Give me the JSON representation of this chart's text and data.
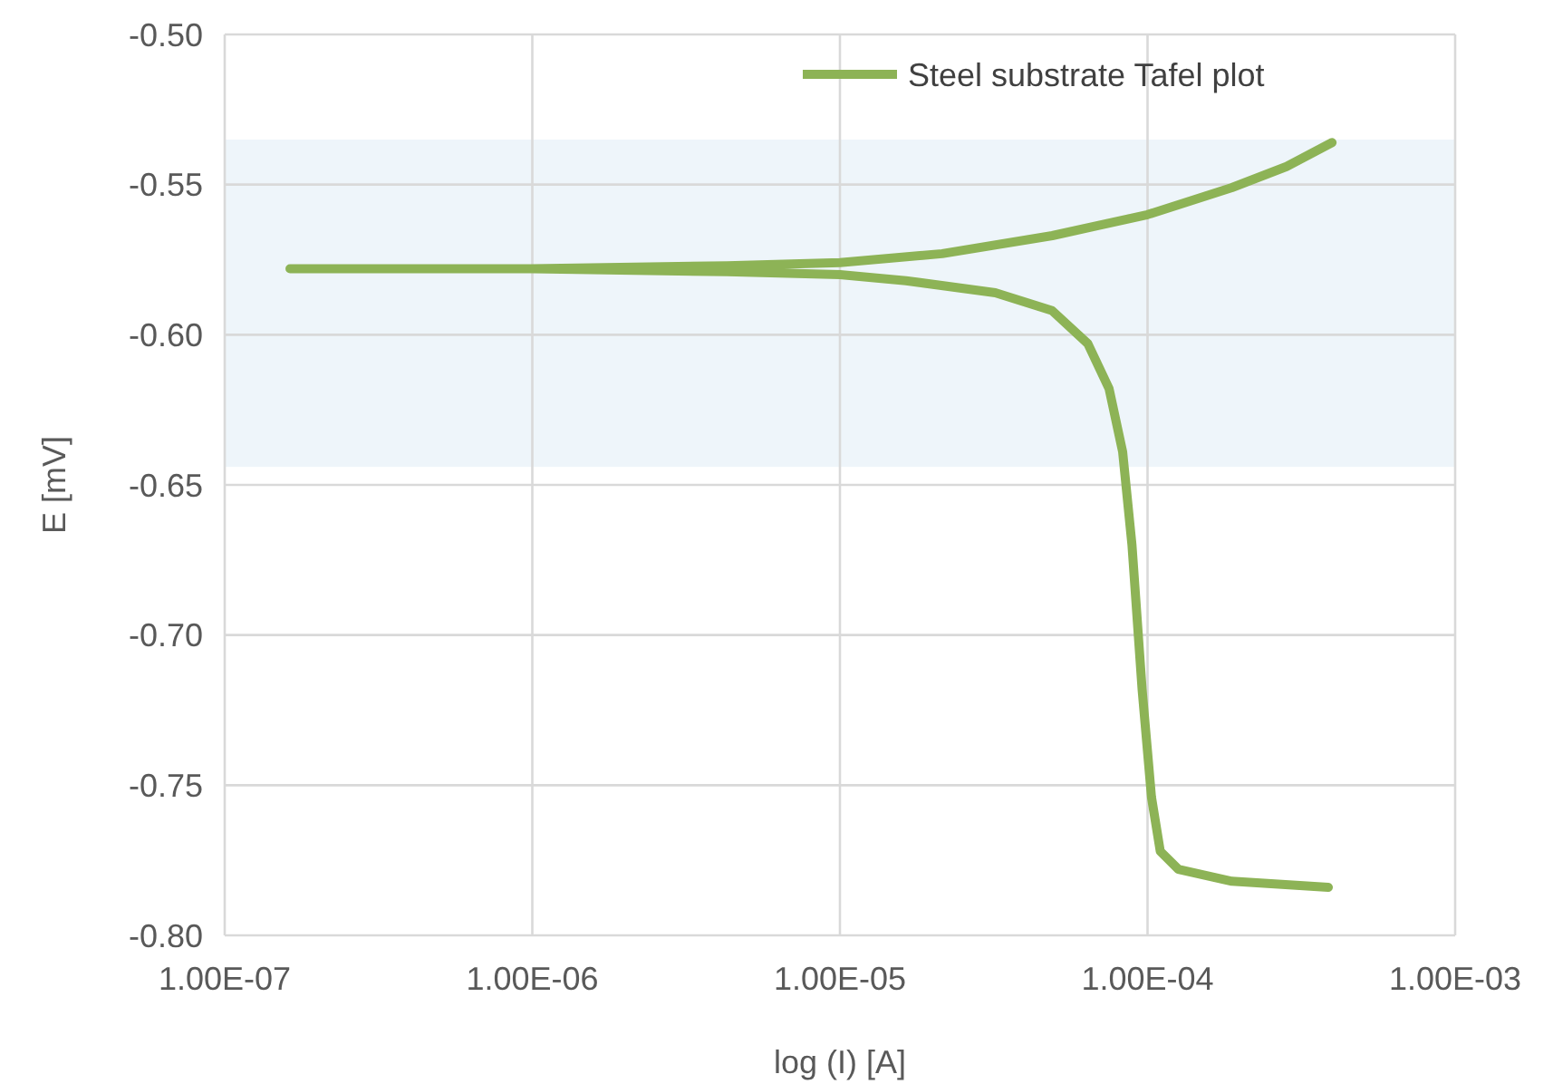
{
  "chart_data": {
    "type": "line",
    "xlabel": "log (I) [A]",
    "ylabel": "E [mV]",
    "log": "x",
    "grid": true,
    "legend": "top right",
    "line_style": "solid",
    "xlim": [
      1e-07,
      0.001
    ],
    "xticks": [
      {
        "value": 1e-07,
        "label": "1.00E-07"
      },
      {
        "value": 1e-06,
        "label": "1.00E-06"
      },
      {
        "value": 1e-05,
        "label": "1.00E-05"
      },
      {
        "value": 0.0001,
        "label": "1.00E-04"
      },
      {
        "value": 0.001,
        "label": "1.00E-03"
      }
    ],
    "ylim": [
      -0.8,
      -0.5
    ],
    "yticks": [
      {
        "value": -0.8,
        "label": "-0.80"
      },
      {
        "value": -0.75,
        "label": "-0.75"
      },
      {
        "value": -0.7,
        "label": "-0.70"
      },
      {
        "value": -0.65,
        "label": "-0.65"
      },
      {
        "value": -0.6,
        "label": "-0.60"
      },
      {
        "value": -0.55,
        "label": "-0.55"
      },
      {
        "value": -0.5,
        "label": "-0.50"
      }
    ],
    "bands": [
      {
        "axis": "y",
        "from": -0.644,
        "to": -0.535,
        "color": "#eef5fa"
      }
    ],
    "series": [
      {
        "name": "Steel substrate Tafel plot",
        "color": "#8db356",
        "x": [
          0.000387,
          0.000188,
          0.000126,
          0.00011,
          0.000103,
          9.6e-05,
          8.9e-05,
          8.3e-05,
          7.5e-05,
          6.4e-05,
          4.9e-05,
          3.2e-05,
          1.64e-05,
          1e-05,
          4.3e-06,
          1e-06,
          1.63e-07,
          1e-06,
          4.3e-06,
          1e-05,
          2.15e-05,
          4.9e-05,
          0.0001,
          0.000188,
          0.000283,
          0.000398
        ],
        "values": [
          -0.784,
          -0.782,
          -0.778,
          -0.772,
          -0.754,
          -0.718,
          -0.67,
          -0.639,
          -0.618,
          -0.603,
          -0.592,
          -0.586,
          -0.582,
          -0.58,
          -0.579,
          -0.578,
          -0.578,
          -0.578,
          -0.577,
          -0.576,
          -0.573,
          -0.567,
          -0.56,
          -0.551,
          -0.544,
          -0.536
        ]
      }
    ]
  }
}
